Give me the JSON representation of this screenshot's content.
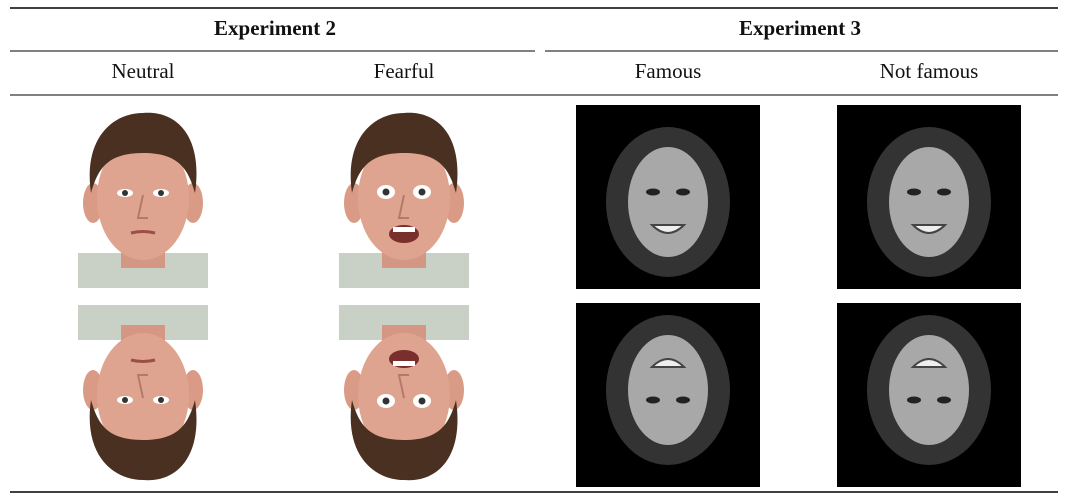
{
  "table": {
    "group_headers": [
      "Experiment 2",
      "Experiment 3"
    ],
    "column_headers": [
      "Neutral",
      "Fearful",
      "Famous",
      "Not famous"
    ]
  }
}
